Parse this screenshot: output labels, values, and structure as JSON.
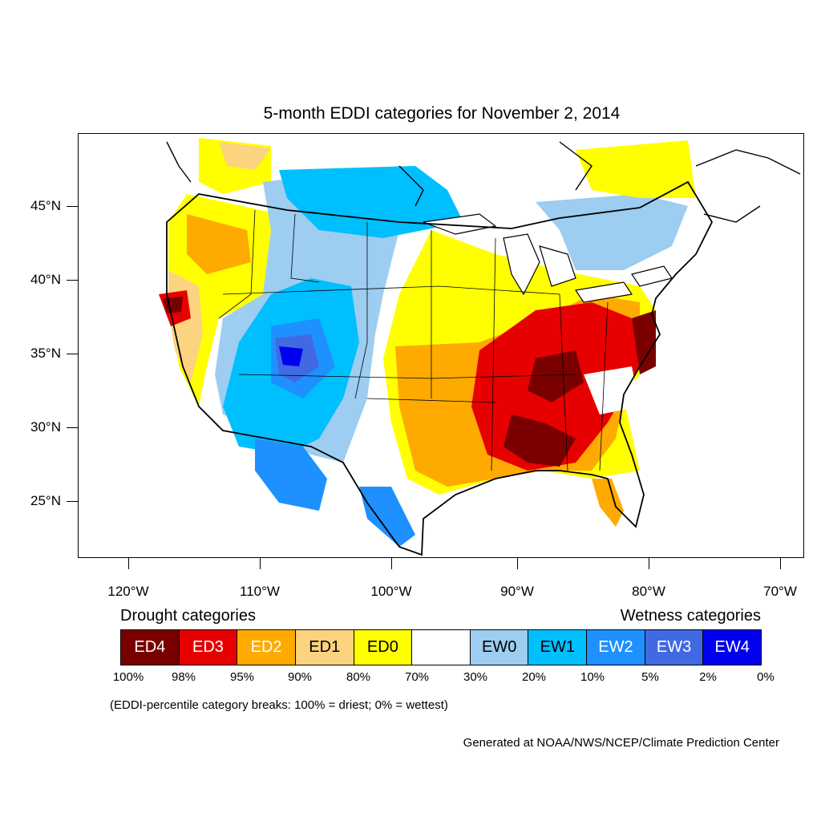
{
  "title": "5-month EDDI categories for November 2, 2014",
  "axes": {
    "lat_labels": [
      "45°N",
      "40°N",
      "35°N",
      "30°N",
      "25°N"
    ],
    "lon_labels": [
      "120°W",
      "110°W",
      "100°W",
      "90°W",
      "80°W",
      "70°W"
    ]
  },
  "legend": {
    "drought_heading": "Drought categories",
    "wetness_heading": "Wetness categories",
    "boxes": [
      {
        "label": "ED4",
        "color": "#7a0000",
        "text_color": "#ffffff"
      },
      {
        "label": "ED3",
        "color": "#e60000",
        "text_color": "#ffffff"
      },
      {
        "label": "ED2",
        "color": "#ffaa00",
        "text_color": "#ffffff"
      },
      {
        "label": "ED1",
        "color": "#fcd37f",
        "text_color": "#000000"
      },
      {
        "label": "ED0",
        "color": "#ffff00",
        "text_color": "#000000"
      },
      {
        "label": "",
        "color": "#ffffff",
        "text_color": "#000000"
      },
      {
        "label": "EW0",
        "color": "#9dcdf0",
        "text_color": "#000000"
      },
      {
        "label": "EW1",
        "color": "#00bfff",
        "text_color": "#000000"
      },
      {
        "label": "EW2",
        "color": "#1e90ff",
        "text_color": "#ffffff"
      },
      {
        "label": "EW3",
        "color": "#4169e1",
        "text_color": "#ffffff"
      },
      {
        "label": "EW4",
        "color": "#0000ee",
        "text_color": "#ffffff"
      }
    ],
    "breaks": [
      "100%",
      "98%",
      "95%",
      "90%",
      "80%",
      "70%",
      "30%",
      "20%",
      "10%",
      "5%",
      "2%",
      "0%"
    ]
  },
  "note": "(EDDI-percentile category breaks: 100% = driest; 0% = wettest)",
  "credit": "Generated at NOAA/NWS/NCEP/Climate Prediction Center"
}
